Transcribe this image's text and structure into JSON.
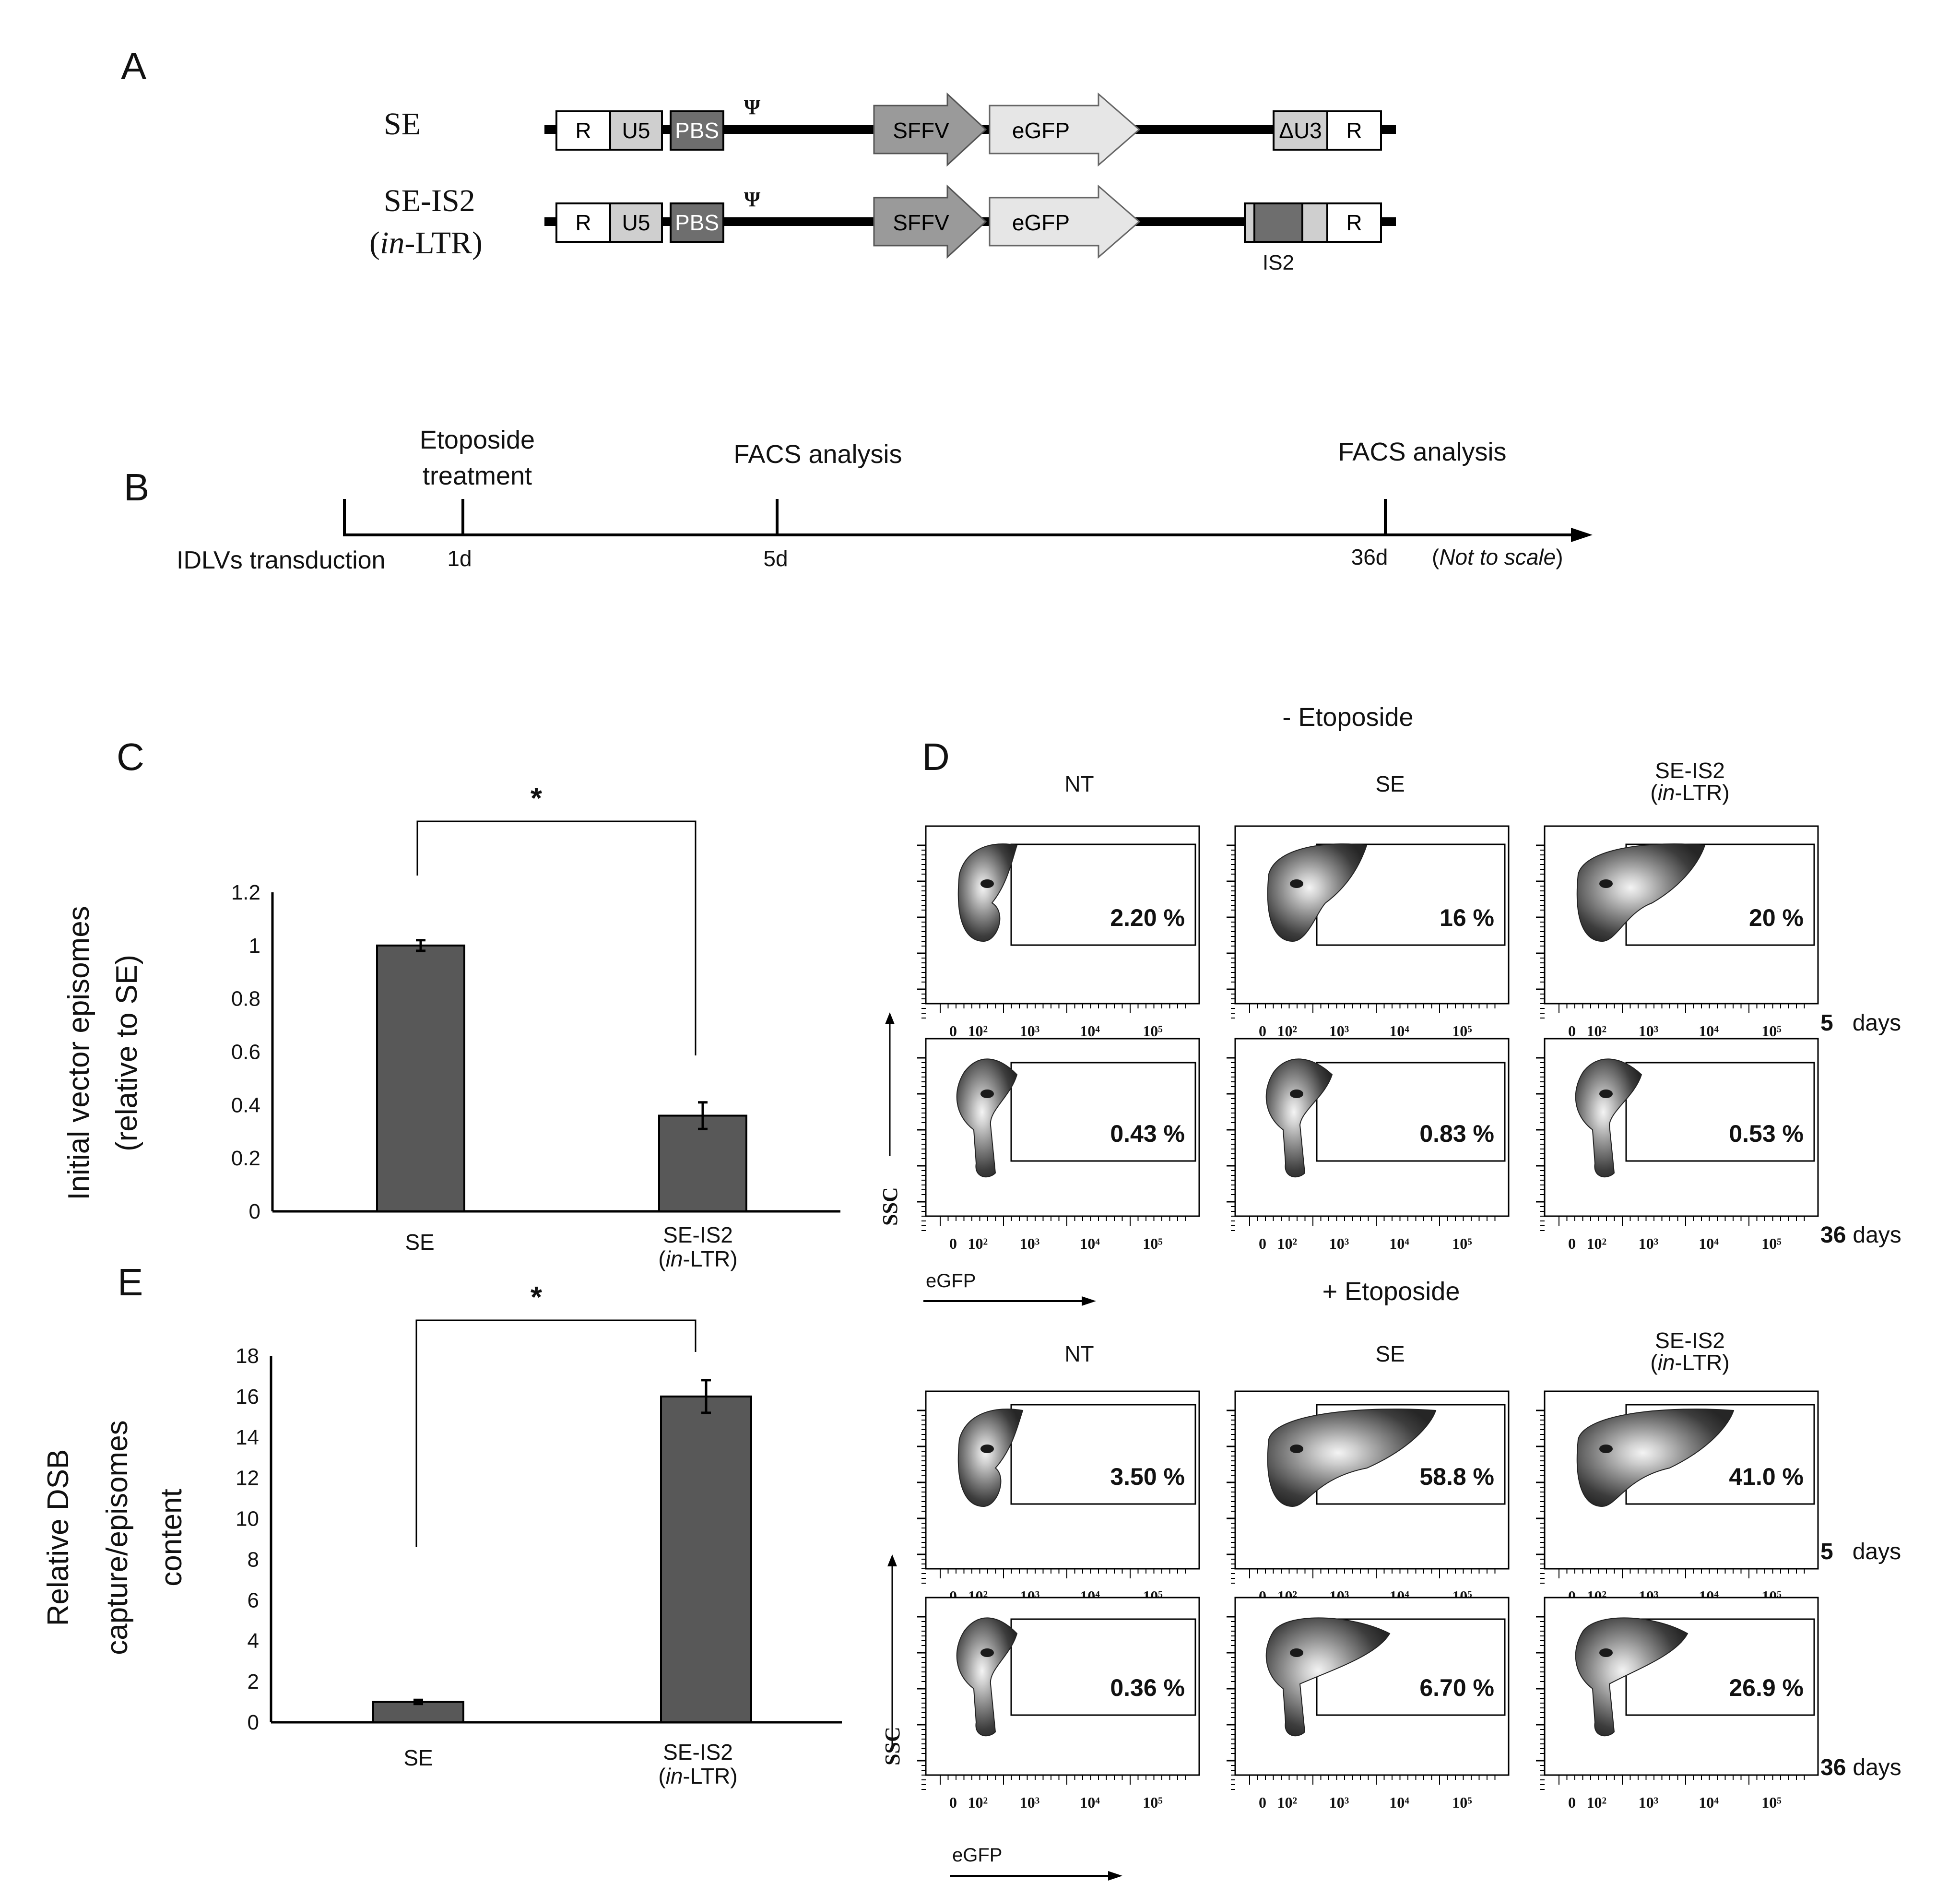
{
  "panels": {
    "a": "A",
    "b": "B",
    "c": "C",
    "d": "D",
    "e": "E"
  },
  "panel_a": {
    "psi": "Ψ",
    "constructs": [
      {
        "name": "SE",
        "elements": {
          "r5": "R",
          "u5": "U5",
          "pbs": "PBS",
          "sffv": "SFFV",
          "egfp": "eGFP",
          "du3": "ΔU3",
          "r3": "R"
        }
      },
      {
        "name_line1": "SE-IS2",
        "name_line2_italic": "in",
        "name_line2_rest": "-LTR)",
        "name_line2_open": "(",
        "elements": {
          "r5": "R",
          "u5": "U5",
          "pbs": "PBS",
          "sffv": "SFFV",
          "egfp": "eGFP",
          "r3": "R"
        },
        "insert_label": "IS2"
      }
    ]
  },
  "panel_b": {
    "start_label": "IDLVs transduction",
    "events": [
      {
        "top1": "Etoposide",
        "top2": "treatment",
        "day": "1d"
      },
      {
        "top1": "FACS analysis",
        "day": "5d"
      },
      {
        "top1": "FACS analysis",
        "day": "36d"
      }
    ],
    "scale_note": {
      "open": "(",
      "italic": "Not  to scale",
      "close": ")"
    }
  },
  "chart_data": [
    {
      "type": "bar",
      "panel": "C",
      "categories": [
        "SE",
        "SE-IS2 (in-LTR)"
      ],
      "category_labels": [
        {
          "line1": "SE"
        },
        {
          "line1": "SE-IS2",
          "line2_open": "(",
          "line2_italic": "in",
          "line2_rest": "-LTR)"
        }
      ],
      "values": [
        1.0,
        0.36
      ],
      "errors": [
        0.02,
        0.05
      ],
      "ylabel_line1": "Initial vector episomes",
      "ylabel_line2": "(relative to SE)",
      "ylim": [
        0,
        1.2
      ],
      "yticks": [
        0,
        0.2,
        0.4,
        0.6,
        0.8,
        1,
        1.2
      ],
      "ytick_labels": [
        "0",
        "0.2",
        "0.4",
        "0.6",
        "0.8",
        "1",
        "1.2"
      ],
      "significance": "*",
      "bar_color": "#585858"
    },
    {
      "type": "bar",
      "panel": "E",
      "categories": [
        "SE",
        "SE-IS2 (in-LTR)"
      ],
      "category_labels": [
        {
          "line1": "SE"
        },
        {
          "line1": "SE-IS2",
          "line2_open": "(",
          "line2_italic": "in",
          "line2_rest": "-LTR)"
        }
      ],
      "values": [
        1.0,
        16.0
      ],
      "errors": [
        0.1,
        0.8
      ],
      "ylabel_lines": [
        "Relative DSB",
        "capture/episomes",
        "content"
      ],
      "ylim": [
        0,
        18
      ],
      "yticks": [
        0,
        2,
        4,
        6,
        8,
        10,
        12,
        14,
        16,
        18
      ],
      "ytick_labels": [
        "0",
        "2",
        "4",
        "6",
        "8",
        "10",
        "12",
        "14",
        "16",
        "18"
      ],
      "significance": "*",
      "bar_color": "#585858"
    }
  ],
  "panel_d": {
    "groups": [
      {
        "title": "- Etoposide",
        "columns": [
          {
            "line1": "NT"
          },
          {
            "line1": "SE"
          },
          {
            "line1": "SE-IS2",
            "line2_open": "(",
            "line2_italic": "in",
            "line2_rest": "-LTR)"
          }
        ],
        "rows": [
          {
            "days_num": "5",
            "days_word": "days",
            "percents": [
              "2.20 %",
              "16 %",
              "20 %"
            ]
          },
          {
            "days_num": "36",
            "days_word": "days",
            "percents": [
              "0.43 %",
              "0.83 %",
              "0.53 %"
            ]
          }
        ]
      },
      {
        "title": "+ Etoposide",
        "columns": [
          {
            "line1": "NT"
          },
          {
            "line1": "SE"
          },
          {
            "line1": "SE-IS2",
            "line2_open": "(",
            "line2_italic": "in",
            "line2_rest": "-LTR)"
          }
        ],
        "rows": [
          {
            "days_num": "5",
            "days_word": "days",
            "percents": [
              "3.50 %",
              "58.8 %",
              "41.0 %"
            ]
          },
          {
            "days_num": "36",
            "days_word": "days",
            "percents": [
              "0.36 %",
              "6.70 %",
              "26.9 %"
            ]
          }
        ]
      }
    ],
    "x_ticks": [
      "0",
      "10²",
      "10³",
      "10⁴",
      "10⁵"
    ],
    "ssc_label": "SSC",
    "egfp_label": "eGFP"
  }
}
